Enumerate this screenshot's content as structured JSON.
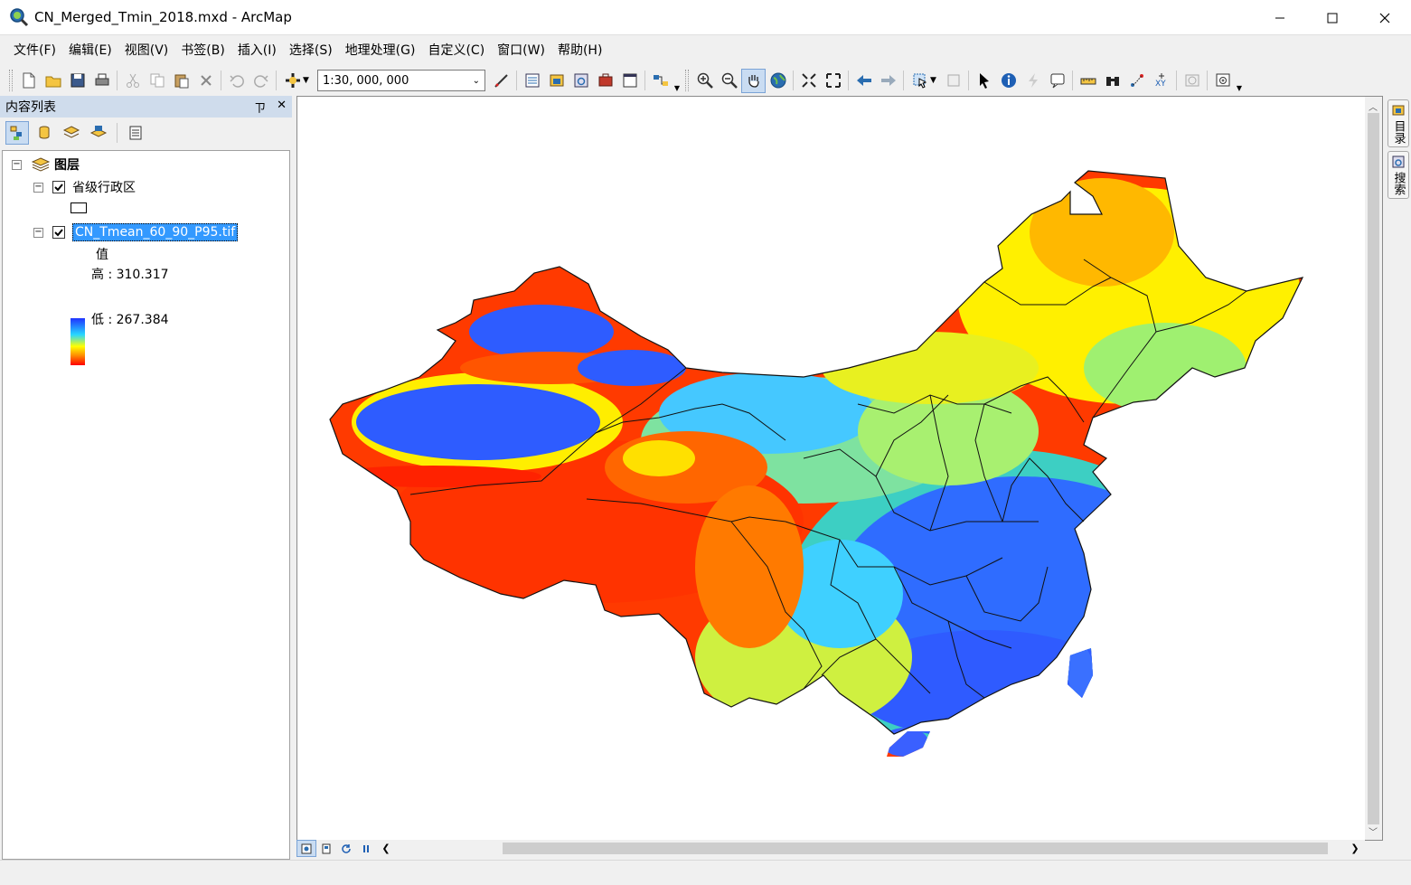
{
  "window": {
    "title": "CN_Merged_Tmin_2018.mxd - ArcMap"
  },
  "menu": {
    "items": [
      "文件(F)",
      "编辑(E)",
      "视图(V)",
      "书签(B)",
      "插入(I)",
      "选择(S)",
      "地理处理(G)",
      "自定义(C)",
      "窗口(W)",
      "帮助(H)"
    ]
  },
  "toolbar": {
    "scale": "1:30, 000, 000"
  },
  "toc": {
    "title": "内容列表",
    "root_label": "图层",
    "layers": [
      {
        "name": "省级行政区",
        "checked": true
      },
      {
        "name": "CN_Tmean_60_90_P95.tif",
        "checked": true,
        "selected": true
      }
    ],
    "legend": {
      "field": "值",
      "high": "高 : 310.317",
      "low": "低 : 267.384"
    }
  },
  "dock": {
    "tabs": [
      "目录",
      "搜索"
    ]
  },
  "colors": {
    "ramp_high": "#2033ff",
    "ramp_mid": "#ffff00",
    "ramp_low": "#ff0000",
    "selection": "#3399ff",
    "toc_header": "#cfdcec"
  }
}
